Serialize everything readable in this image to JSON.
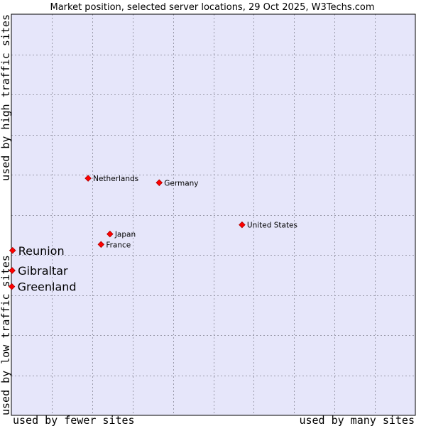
{
  "chart_data": {
    "type": "scatter",
    "title": "Market position, selected server locations, 29 Oct 2025, W3Techs.com",
    "xlabel_low": "used by fewer sites",
    "xlabel_high": "used by many sites",
    "ylabel_low": "used by low traffic sites",
    "ylabel_high": "used by high traffic sites",
    "grid": true,
    "xlim": [
      0,
      100
    ],
    "ylim": [
      0,
      100
    ],
    "colors": {
      "plot_background": "#e6e6fa",
      "grid": "#9a9aaa",
      "border": "#000000",
      "marker": "#ff0000",
      "marker_edge": "#aa0000"
    },
    "points": [
      {
        "name": "Netherlands",
        "x": 19.0,
        "y": 59.1,
        "label_size": "small"
      },
      {
        "name": "Germany",
        "x": 36.6,
        "y": 58.0,
        "label_size": "small"
      },
      {
        "name": "United States",
        "x": 57.1,
        "y": 47.5,
        "label_size": "small"
      },
      {
        "name": "Japan",
        "x": 24.4,
        "y": 45.2,
        "label_size": "small"
      },
      {
        "name": "France",
        "x": 22.2,
        "y": 42.6,
        "label_size": "small"
      },
      {
        "name": "Reunion",
        "x": 0.3,
        "y": 41.1,
        "label_size": "large"
      },
      {
        "name": "Gibraltar",
        "x": 0.2,
        "y": 36.1,
        "label_size": "large"
      },
      {
        "name": "Greenland",
        "x": 0.1,
        "y": 32.1,
        "label_size": "large"
      }
    ]
  }
}
